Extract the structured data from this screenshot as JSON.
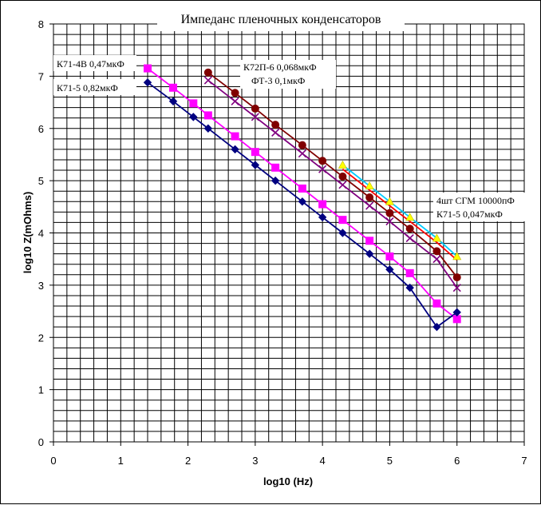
{
  "chart_data": {
    "type": "line",
    "title": "Импеданс пленочных конденсаторов",
    "xlabel": "log10 (Hz)",
    "ylabel": "log10 Z(mOhms)",
    "xlim": [
      0,
      7
    ],
    "ylim": [
      0,
      8
    ],
    "x_ticks": [
      "0",
      "1",
      "2",
      "3",
      "4",
      "5",
      "6",
      "7"
    ],
    "y_ticks": [
      "0",
      "1",
      "2",
      "3",
      "4",
      "5",
      "6",
      "7",
      "8"
    ],
    "grid": {
      "x_minor": 0.2,
      "y_minor": 0.2
    },
    "series": [
      {
        "name": "К71-5 0,82мкФ",
        "color": "#000080",
        "marker": "diamond",
        "x": [
          1.4,
          1.78,
          2.08,
          2.3,
          2.7,
          3.0,
          3.3,
          3.7,
          4.0,
          4.3,
          4.7,
          5.0,
          5.3,
          5.7,
          6.0
        ],
        "values": [
          6.88,
          6.52,
          6.22,
          6.0,
          5.6,
          5.3,
          5.0,
          4.6,
          4.3,
          4.0,
          3.6,
          3.3,
          2.95,
          2.2,
          2.48
        ]
      },
      {
        "name": "К71-4В 0,47мкФ",
        "color": "#ff00ff",
        "marker": "square",
        "x": [
          1.4,
          1.78,
          2.08,
          2.3,
          2.7,
          3.0,
          3.3,
          3.7,
          4.0,
          4.3,
          4.7,
          5.0,
          5.3,
          5.7,
          6.0
        ],
        "values": [
          7.15,
          6.78,
          6.48,
          6.25,
          5.85,
          5.55,
          5.25,
          4.85,
          4.55,
          4.25,
          3.85,
          3.55,
          3.23,
          2.65,
          2.35
        ]
      },
      {
        "name": "К72П-6 0,068мкФ",
        "color": "#800000",
        "marker": "circle",
        "x": [
          2.3,
          2.7,
          3.0,
          3.3,
          3.7,
          4.0,
          4.3,
          4.7,
          5.0,
          5.3,
          5.7,
          6.0
        ],
        "values": [
          7.07,
          6.68,
          6.38,
          6.07,
          5.68,
          5.38,
          5.08,
          4.68,
          4.38,
          4.08,
          3.65,
          3.15
        ]
      },
      {
        "name": "ФТ-3  0,1мкФ",
        "color": "#800080",
        "marker": "x",
        "x": [
          2.3,
          2.7,
          3.0,
          3.3,
          3.7,
          4.0,
          4.3,
          4.7,
          5.0,
          5.3,
          5.7,
          6.0
        ],
        "values": [
          6.92,
          6.52,
          6.22,
          5.92,
          5.52,
          5.22,
          4.92,
          4.52,
          4.22,
          3.9,
          3.5,
          2.95
        ]
      },
      {
        "name": "4шт СГМ 10000пФ",
        "color": "#ffff00",
        "line_color": "#00ccff",
        "marker": "triangle",
        "x": [
          4.3,
          4.7,
          5.0,
          5.3,
          5.7,
          6.0
        ],
        "values": [
          5.3,
          4.9,
          4.6,
          4.3,
          3.9,
          3.55
        ]
      },
      {
        "name": "К71-5 0,047мкФ",
        "color": "#ff0000",
        "marker": "none",
        "x": [
          4.3,
          4.7,
          5.0,
          5.3,
          5.7,
          6.0
        ],
        "values": [
          5.22,
          4.82,
          4.52,
          4.22,
          3.82,
          3.48
        ]
      }
    ]
  }
}
